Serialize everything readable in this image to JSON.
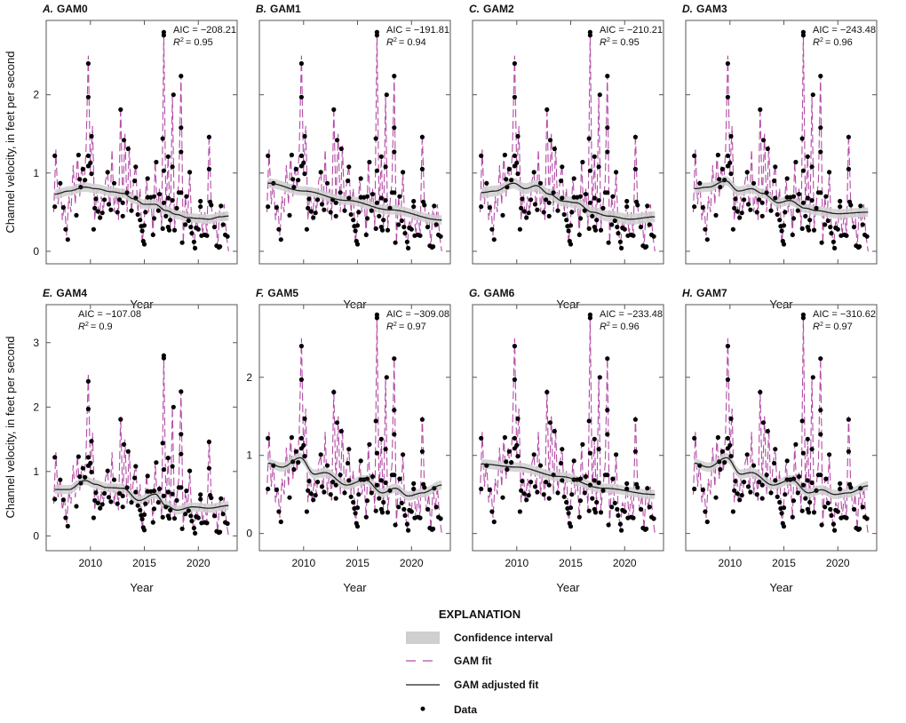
{
  "chart_data": {
    "type": "line",
    "ylabel": "Channel velocity, in feet per second",
    "xlabel": "Year",
    "x_ticks": [
      2010,
      2015,
      2020
    ],
    "xlim": [
      2005.9,
      2023.6
    ],
    "colors": {
      "gam_fit": "#b44ba6",
      "adjusted_fit": "#222222",
      "confidence": "#cfcfcf",
      "data": "#000000"
    },
    "legend": {
      "title": "EXPLANATION",
      "placement": "bottom-center",
      "items": [
        "Confidence interval",
        "GAM fit",
        "GAM adjusted fit",
        "Data"
      ]
    },
    "data_points": [
      [
        2006.7,
        1.22
      ],
      [
        2006.7,
        0.57
      ],
      [
        2007.2,
        0.87
      ],
      [
        2007.5,
        0.56
      ],
      [
        2007.7,
        0.28
      ],
      [
        2007.9,
        0.15
      ],
      [
        2008.9,
        1.23
      ],
      [
        2008.7,
        0.46
      ],
      [
        2009.1,
        0.82
      ],
      [
        2009.3,
        1.05
      ],
      [
        2009.0,
        0.92
      ],
      [
        2009.5,
        0.91
      ],
      [
        2009.8,
        1.22
      ],
      [
        2009.8,
        2.4
      ],
      [
        2009.8,
        1.97
      ],
      [
        2010.0,
        1.13
      ],
      [
        2009.8,
        1.09
      ],
      [
        2010.1,
        1.47
      ],
      [
        2010.1,
        0.99
      ],
      [
        2010.3,
        0.28
      ],
      [
        2010.4,
        0.55
      ],
      [
        2010.5,
        0.67
      ],
      [
        2010.7,
        0.51
      ],
      [
        2010.9,
        0.43
      ],
      [
        2011.1,
        0.49
      ],
      [
        2011.3,
        0.66
      ],
      [
        2011.6,
        1.01
      ],
      [
        2011.7,
        0.6
      ],
      [
        2011.9,
        0.53
      ],
      [
        2012.2,
        0.87
      ],
      [
        2012.5,
        0.5
      ],
      [
        2012.8,
        1.81
      ],
      [
        2012.7,
        0.66
      ],
      [
        2013.0,
        0.62
      ],
      [
        2013.1,
        1.42
      ],
      [
        2013.0,
        0.45
      ],
      [
        2013.5,
        1.31
      ],
      [
        2013.4,
        0.75
      ],
      [
        2013.8,
        0.52
      ],
      [
        2014.1,
        0.9
      ],
      [
        2014.2,
        1.08
      ],
      [
        2014.2,
        0.68
      ],
      [
        2014.4,
        0.47
      ],
      [
        2014.6,
        0.4
      ],
      [
        2014.7,
        0.32
      ],
      [
        2014.8,
        0.26
      ],
      [
        2014.9,
        0.13
      ],
      [
        2015.0,
        0.09
      ],
      [
        2015.0,
        0.33
      ],
      [
        2015.1,
        0.5
      ],
      [
        2015.3,
        0.93
      ],
      [
        2015.3,
        0.69
      ],
      [
        2015.6,
        0.69
      ],
      [
        2015.8,
        0.21
      ],
      [
        2015.9,
        0.42
      ],
      [
        2016.1,
        1.14
      ],
      [
        2015.9,
        0.7
      ],
      [
        2016.3,
        0.52
      ],
      [
        2016.4,
        0.73
      ],
      [
        2016.7,
        1.44
      ],
      [
        2016.8,
        2.8
      ],
      [
        2016.8,
        2.76
      ],
      [
        2016.8,
        1.03
      ],
      [
        2016.8,
        0.62
      ],
      [
        2016.7,
        0.29
      ],
      [
        2017.0,
        0.45
      ],
      [
        2017.2,
        1.21
      ],
      [
        2017.2,
        0.68
      ],
      [
        2017.2,
        0.31
      ],
      [
        2017.3,
        0.27
      ],
      [
        2017.4,
        0.4
      ],
      [
        2017.6,
        1.08
      ],
      [
        2017.7,
        2.0
      ],
      [
        2017.6,
        0.65
      ],
      [
        2017.8,
        0.27
      ],
      [
        2018.0,
        0.55
      ],
      [
        2018.2,
        0.75
      ],
      [
        2018.4,
        0.75
      ],
      [
        2018.4,
        2.24
      ],
      [
        2018.4,
        1.58
      ],
      [
        2018.4,
        1.27
      ],
      [
        2018.5,
        0.11
      ],
      [
        2018.9,
        0.7
      ],
      [
        2018.8,
        0.34
      ],
      [
        2019.2,
        1.01
      ],
      [
        2019.1,
        0.39
      ],
      [
        2019.3,
        0.31
      ],
      [
        2019.4,
        0.23
      ],
      [
        2019.6,
        0.12
      ],
      [
        2019.7,
        0.04
      ],
      [
        2019.8,
        0.3
      ],
      [
        2020.0,
        0.28
      ],
      [
        2020.2,
        0.64
      ],
      [
        2020.2,
        0.57
      ],
      [
        2020.3,
        0.2
      ],
      [
        2020.6,
        0.21
      ],
      [
        2020.8,
        0.2
      ],
      [
        2021.0,
        1.46
      ],
      [
        2021.0,
        1.05
      ],
      [
        2021.1,
        0.63
      ],
      [
        2021.2,
        0.59
      ],
      [
        2021.5,
        0.31
      ],
      [
        2021.7,
        0.07
      ],
      [
        2021.9,
        0.05
      ],
      [
        2022.0,
        0.06
      ],
      [
        2022.1,
        0.58
      ],
      [
        2022.3,
        0.34
      ],
      [
        2022.5,
        0.21
      ],
      [
        2022.7,
        0.19
      ]
    ],
    "gam_fit": {
      "x_start": 2006.6,
      "x_step": 0.2,
      "values": [
        0.5,
        1.3,
        0.6,
        0.9,
        0.4,
        0.6,
        0.2,
        0.7,
        0.5,
        1.1,
        0.6,
        1.25,
        0.7,
        1.1,
        0.8,
        1.3,
        2.5,
        1.0,
        1.6,
        0.4,
        0.8,
        0.4,
        0.7,
        0.5,
        0.9,
        1.0,
        0.5,
        1.3,
        0.5,
        0.8,
        0.4,
        1.85,
        0.6,
        1.5,
        0.5,
        1.35,
        0.5,
        0.9,
        1.1,
        0.5,
        0.8,
        0.1,
        0.4,
        0.95,
        0.5,
        0.7,
        0.2,
        1.15,
        0.5,
        0.8,
        0.3,
        2.8,
        0.5,
        1.2,
        0.3,
        2.0,
        0.3,
        0.6,
        0.9,
        2.25,
        0.1,
        0.7,
        0.4,
        1.0,
        0.3,
        0.05,
        0.4,
        0.3,
        0.65,
        0.2,
        0.5,
        0.2,
        1.5,
        0.6,
        0.3,
        0.5,
        0.05,
        0.6,
        0.3,
        0.6,
        0.2,
        0.0
      ]
    },
    "panels": [
      {
        "letter": "A.",
        "model": "GAM0",
        "aic": "AIC = −208.21",
        "r2": "= 0.95",
        "ylim": [
          -0.16,
          2.95
        ],
        "y_ticks": [
          0,
          1,
          2
        ],
        "ci_half": 0.06,
        "adjusted_fit": [
          [
            2006.7,
            0.73
          ],
          [
            2008,
            0.77
          ],
          [
            2009.5,
            0.82
          ],
          [
            2010.5,
            0.8
          ],
          [
            2012,
            0.76
          ],
          [
            2013,
            0.74
          ],
          [
            2014,
            0.67
          ],
          [
            2015,
            0.6
          ],
          [
            2016,
            0.6
          ],
          [
            2017,
            0.52
          ],
          [
            2018,
            0.47
          ],
          [
            2019,
            0.43
          ],
          [
            2020,
            0.42
          ],
          [
            2021,
            0.41
          ],
          [
            2022,
            0.44
          ],
          [
            2022.8,
            0.45
          ]
        ]
      },
      {
        "letter": "B.",
        "model": "GAM1",
        "aic": "AIC = −191.81",
        "r2": "= 0.94",
        "ylim": [
          -0.16,
          2.95
        ],
        "y_ticks": [
          0,
          1,
          2
        ],
        "ci_half": 0.06,
        "adjusted_fit": [
          [
            2006.7,
            0.87
          ],
          [
            2010,
            0.77
          ],
          [
            2014,
            0.65
          ],
          [
            2018,
            0.53
          ],
          [
            2022.8,
            0.4
          ]
        ]
      },
      {
        "letter": "C.",
        "model": "GAM2",
        "aic": "AIC = −210.21",
        "r2": "= 0.95",
        "ylim": [
          -0.16,
          2.95
        ],
        "y_ticks": [
          0,
          1,
          2
        ],
        "ci_half": 0.07,
        "adjusted_fit": [
          [
            2006.7,
            0.75
          ],
          [
            2008,
            0.77
          ],
          [
            2009.7,
            0.87
          ],
          [
            2010.8,
            0.8
          ],
          [
            2011.8,
            0.84
          ],
          [
            2013,
            0.73
          ],
          [
            2014.3,
            0.64
          ],
          [
            2015.5,
            0.62
          ],
          [
            2017,
            0.5
          ],
          [
            2018.5,
            0.45
          ],
          [
            2020.5,
            0.41
          ],
          [
            2022.8,
            0.44
          ]
        ]
      },
      {
        "letter": "D.",
        "model": "GAM3",
        "aic": "AIC = −243.48",
        "r2": "= 0.96",
        "ylim": [
          -0.16,
          2.95
        ],
        "y_ticks": [
          0,
          1,
          2
        ],
        "ci_half": 0.06,
        "adjusted_fit": [
          [
            2006.7,
            0.8
          ],
          [
            2008,
            0.82
          ],
          [
            2009.6,
            0.9
          ],
          [
            2010.8,
            0.77
          ],
          [
            2012,
            0.8
          ],
          [
            2013,
            0.74
          ],
          [
            2014.5,
            0.62
          ],
          [
            2015.5,
            0.65
          ],
          [
            2017,
            0.55
          ],
          [
            2018,
            0.52
          ],
          [
            2020,
            0.48
          ],
          [
            2022.8,
            0.5
          ]
        ]
      },
      {
        "letter": "E.",
        "model": "GAM4",
        "aic": "AIC = −107.08",
        "r2": "= 0.9",
        "ylim": [
          -0.23,
          3.59
        ],
        "y_ticks": [
          0,
          1,
          2,
          3
        ],
        "ci_half": 0.07,
        "ann_left": true,
        "adjusted_fit": [
          [
            2006.7,
            0.72
          ],
          [
            2008,
            0.72
          ],
          [
            2009.5,
            0.86
          ],
          [
            2010.5,
            0.8
          ],
          [
            2011.5,
            0.75
          ],
          [
            2013,
            0.74
          ],
          [
            2014.5,
            0.55
          ],
          [
            2016,
            0.65
          ],
          [
            2017,
            0.47
          ],
          [
            2018,
            0.4
          ],
          [
            2019.5,
            0.45
          ],
          [
            2021,
            0.43
          ],
          [
            2022.8,
            0.47
          ]
        ]
      },
      {
        "letter": "F.",
        "model": "GAM5",
        "aic": "AIC = −309.08",
        "r2": "= 0.97",
        "ylim": [
          -0.22,
          2.93
        ],
        "y_ticks": [
          0,
          1,
          2
        ],
        "ci_half": 0.06,
        "adjusted_fit": [
          [
            2006.7,
            0.9
          ],
          [
            2008,
            0.85
          ],
          [
            2009.7,
            0.97
          ],
          [
            2011,
            0.76
          ],
          [
            2012,
            0.78
          ],
          [
            2014,
            0.62
          ],
          [
            2015.7,
            0.69
          ],
          [
            2017.3,
            0.52
          ],
          [
            2018.5,
            0.58
          ],
          [
            2019.7,
            0.48
          ],
          [
            2021,
            0.52
          ],
          [
            2022.8,
            0.62
          ]
        ]
      },
      {
        "letter": "G.",
        "model": "GAM6",
        "aic": "AIC = −233.48",
        "r2": "= 0.96",
        "ylim": [
          -0.22,
          2.93
        ],
        "y_ticks": [
          0,
          1,
          2
        ],
        "ci_half": 0.06,
        "adjusted_fit": [
          [
            2006.7,
            0.89
          ],
          [
            2010,
            0.85
          ],
          [
            2014,
            0.73
          ],
          [
            2018,
            0.58
          ],
          [
            2022.8,
            0.5
          ]
        ]
      },
      {
        "letter": "H.",
        "model": "GAM7",
        "aic": "AIC = −310.62",
        "r2": "= 0.97",
        "ylim": [
          -0.22,
          2.93
        ],
        "y_ticks": [
          0,
          1,
          2
        ],
        "ci_half": 0.06,
        "adjusted_fit": [
          [
            2006.7,
            0.9
          ],
          [
            2008,
            0.85
          ],
          [
            2009.7,
            0.97
          ],
          [
            2011,
            0.76
          ],
          [
            2012,
            0.78
          ],
          [
            2014,
            0.62
          ],
          [
            2015.7,
            0.69
          ],
          [
            2017.3,
            0.52
          ],
          [
            2018.5,
            0.56
          ],
          [
            2019.7,
            0.5
          ],
          [
            2021,
            0.52
          ],
          [
            2022.8,
            0.61
          ]
        ]
      }
    ]
  }
}
